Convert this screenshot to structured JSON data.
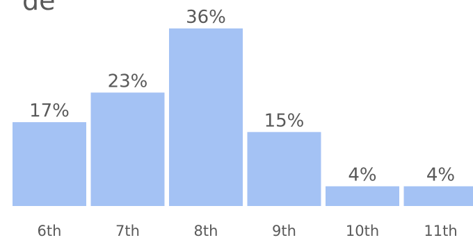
{
  "chart_data": {
    "type": "bar",
    "title_fragment": "de",
    "categories": [
      "6th",
      "7th",
      "8th",
      "9th",
      "10th",
      "11th"
    ],
    "values": [
      17,
      23,
      36,
      15,
      4,
      4
    ],
    "value_labels": [
      "17%",
      "23%",
      "36%",
      "15%",
      "4%",
      "4%"
    ],
    "ylim": [
      0,
      36
    ],
    "grid": false,
    "legend": "none",
    "bar_color": "#a4c2f4",
    "text_color": "#595959"
  }
}
